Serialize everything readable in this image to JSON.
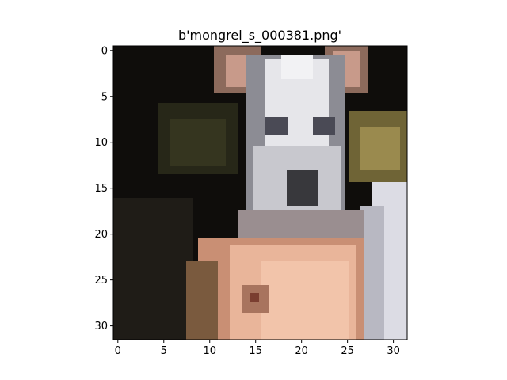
{
  "figure": {
    "title": "b'mongrel_s_000381.png'"
  },
  "image": {
    "description_icon": "low-resolution-dog-photo",
    "grid_size": 32,
    "colors": {
      "background_dark": "#0f0d0b",
      "background_olive": "#3a3a22",
      "face_white": "#e6e6ea",
      "face_gray": "#8c8c94",
      "nose_dark": "#38383c",
      "ear_pink": "#c89a8a",
      "skin_peach": "#e9b59a",
      "skin_shadow": "#a8745e",
      "yellow_patch": "#9a8a4e",
      "right_white": "#dcdce4"
    }
  },
  "axes": {
    "x_ticks": [
      "0",
      "5",
      "10",
      "15",
      "20",
      "25",
      "30"
    ],
    "y_ticks": [
      "0",
      "5",
      "10",
      "15",
      "20",
      "25",
      "30"
    ]
  }
}
